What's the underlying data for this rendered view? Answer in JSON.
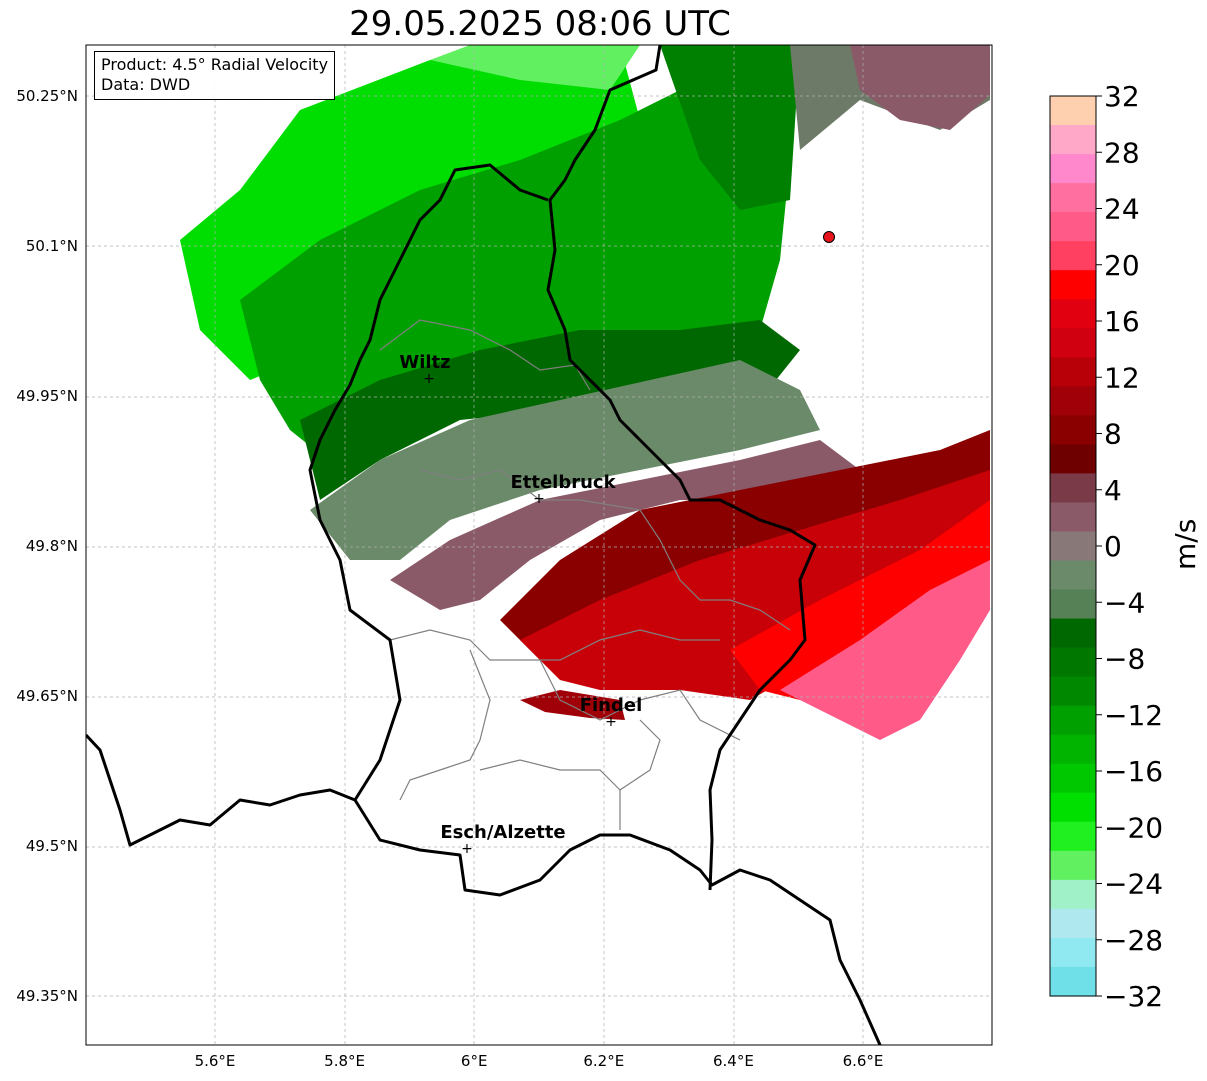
{
  "title": "29.05.2025 08:06 UTC",
  "info": {
    "product": "Product: 4.5° Radial Velocity",
    "data_source": "Data: DWD"
  },
  "map": {
    "lon_range": [
      5.4,
      6.8
    ],
    "lat_range": [
      49.3,
      50.3
    ],
    "lon_ticks": [
      "5.6°E",
      "5.8°E",
      "6°E",
      "6.2°E",
      "6.4°E",
      "6.6°E"
    ],
    "lat_ticks": [
      "50.25°N",
      "50.1°N",
      "49.95°N",
      "49.8°N",
      "49.65°N",
      "49.5°N",
      "49.35°N"
    ],
    "grid": true,
    "radar_site": {
      "lon": 6.548,
      "lat": 50.11,
      "color": "#e8141b"
    },
    "cities": [
      {
        "name": "Wiltz",
        "lon": 5.93,
        "lat": 49.97
      },
      {
        "name": "Ettelbruck",
        "lon": 6.1,
        "lat": 49.85
      },
      {
        "name": "Findel",
        "lon": 6.21,
        "lat": 49.63
      },
      {
        "name": "Esch/Alzette",
        "lon": 5.99,
        "lat": 49.5
      }
    ]
  },
  "colorbar": {
    "unit": "m/s",
    "tick_labels": [
      "32",
      "28",
      "24",
      "20",
      "16",
      "12",
      "8",
      "4",
      "0",
      "−4",
      "−8",
      "−12",
      "−16",
      "−20",
      "−24",
      "−28",
      "−32"
    ],
    "range": [
      -32,
      32
    ],
    "colors_top_to_bottom": [
      "#ffd0b0",
      "#ffa8c8",
      "#ff88cc",
      "#ff70a0",
      "#ff5a88",
      "#ff4060",
      "#ff0000",
      "#e00010",
      "#d00010",
      "#b80008",
      "#a00008",
      "#8a0000",
      "#6e0000",
      "#7a3a48",
      "#8a5a68",
      "#887878",
      "#6a8a6a",
      "#568056",
      "#006800",
      "#007800",
      "#008800",
      "#00a000",
      "#00b400",
      "#00c800",
      "#00e000",
      "#20f020",
      "#60f060",
      "#a0f0c8",
      "#b0e8f0",
      "#90e8f0",
      "#70e0e8"
    ]
  }
}
